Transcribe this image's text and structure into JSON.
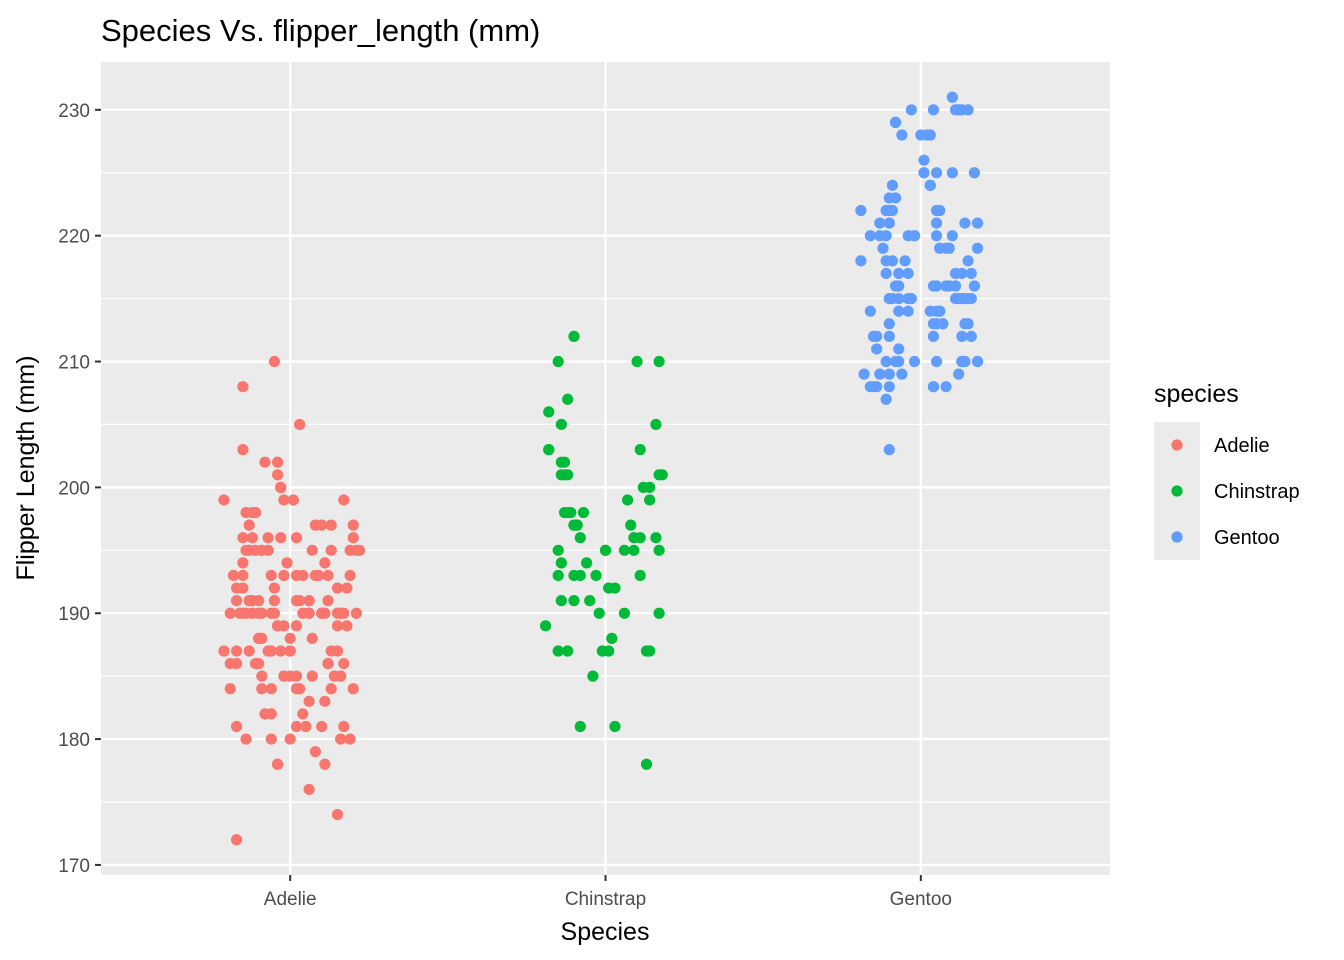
{
  "chart_data": {
    "type": "scatter",
    "title": "Species Vs. flipper_length (mm)",
    "xlabel": "Species",
    "ylabel": "Flipper Length (mm)",
    "categories": [
      "Adelie",
      "Chinstrap",
      "Gentoo"
    ],
    "ylim": [
      169.2,
      233.8
    ],
    "yticks": [
      170,
      180,
      190,
      200,
      210,
      220,
      230
    ],
    "ytick_labels": [
      "170",
      "180",
      "190",
      "200",
      "210",
      "220",
      "230"
    ],
    "grid": true,
    "legend": {
      "title": "species",
      "position": "right",
      "entries": [
        "Adelie",
        "Chinstrap",
        "Gentoo"
      ]
    },
    "colors": {
      "Adelie": "#F8766D",
      "Chinstrap": "#00BA38",
      "Gentoo": "#619CFF",
      "panel": "#EBEBEB",
      "grid": "#FFFFFF"
    },
    "series": [
      {
        "name": "Adelie",
        "values": [
          181,
          186,
          195,
          193,
          190,
          181,
          195,
          193,
          190,
          186,
          180,
          182,
          191,
          198,
          185,
          195,
          197,
          184,
          194,
          174,
          180,
          189,
          185,
          180,
          187,
          183,
          187,
          172,
          180,
          178,
          178,
          188,
          184,
          195,
          196,
          190,
          180,
          181,
          184,
          182,
          195,
          186,
          196,
          185,
          190,
          182,
          179,
          190,
          191,
          186,
          188,
          190,
          200,
          187,
          191,
          186,
          193,
          181,
          194,
          185,
          195,
          185,
          192,
          184,
          192,
          195,
          188,
          190,
          198,
          190,
          190,
          196,
          197,
          190,
          195,
          191,
          184,
          187,
          195,
          189,
          196,
          187,
          193,
          191,
          194,
          190,
          189,
          189,
          190,
          202,
          205,
          185,
          186,
          187,
          208,
          190,
          196,
          178,
          192,
          192,
          203,
          183,
          190,
          193,
          184,
          199,
          190,
          181,
          197,
          198,
          191,
          193,
          197,
          191,
          196,
          188,
          199,
          189,
          189,
          187,
          198,
          176,
          202,
          186,
          199,
          191,
          195,
          191,
          210,
          190,
          197,
          193,
          199,
          187,
          190,
          191,
          200,
          185,
          193,
          193,
          187,
          188,
          190,
          192,
          185,
          190,
          184,
          195,
          193,
          187,
          201
        ],
        "x_jitter": [
          -0.17,
          0.12,
          -0.09,
          -0.02,
          0.21,
          0.05,
          -0.14,
          0.19,
          -0.06,
          -0.17,
          0.16,
          -0.08,
          0.03,
          -0.11,
          0.14,
          0.22,
          0.08,
          -0.19,
          -0.15,
          0.15,
          0.19,
          -0.04,
          0.07,
          0.0,
          -0.21,
          0.11,
          -0.13,
          -0.17,
          -0.14,
          -0.04,
          0.11,
          -0.1,
          0.02,
          0.21,
          -0.03,
          0.06,
          -0.06,
          0.1,
          0.13,
          -0.06,
          -0.13,
          -0.19,
          -0.07,
          0.16,
          0.1,
          0.04,
          0.08,
          -0.05,
          -0.12,
          0.17,
          0.0,
          0.15,
          -0.03,
          -0.06,
          0.06,
          -0.11,
          -0.18,
          0.17,
          -0.01,
          -0.09,
          0.07,
          -0.02,
          -0.17,
          0.03,
          -0.05,
          0.13,
          -0.1,
          0.04,
          -0.11,
          -0.12,
          0.17,
          -0.15,
          0.13,
          0.16,
          -0.11,
          -0.17,
          -0.06,
          0.15,
          -0.07,
          -0.02,
          0.02,
          -0.17,
          0.12,
          -0.13,
          0.11,
          -0.16,
          0.02,
          0.15,
          0.11,
          -0.08,
          0.03,
          0.02,
          -0.1,
          -0.03,
          -0.15,
          -0.15,
          0.2,
          -0.04,
          -0.15,
          0.15,
          -0.15,
          0.06,
          0.1,
          0.09,
          -0.09,
          0.17,
          0.06,
          0.02,
          0.1,
          -0.12,
          -0.13,
          0.04,
          -0.13,
          0.12,
          -0.12,
          0.07,
          0.01,
          0.18,
          -0.04,
          0.0,
          -0.14,
          0.06,
          -0.04,
          0.12,
          -0.21,
          0.02,
          0.19,
          -0.05,
          -0.05,
          -0.19,
          0.2,
          -0.06,
          -0.02,
          -0.07,
          -0.14,
          -0.1,
          -0.03,
          0.16,
          0.02,
          -0.15,
          0.13,
          -0.09,
          -0.09,
          0.18,
          0.0,
          -0.1,
          0.2,
          -0.09,
          0.08,
          0.0,
          -0.04
        ]
      },
      {
        "name": "Chinstrap",
        "values": [
          192,
          196,
          193,
          188,
          197,
          198,
          178,
          197,
          195,
          198,
          193,
          194,
          185,
          201,
          190,
          201,
          197,
          181,
          190,
          195,
          181,
          191,
          187,
          193,
          195,
          197,
          200,
          200,
          191,
          205,
          187,
          201,
          187,
          203,
          195,
          199,
          195,
          210,
          192,
          205,
          210,
          187,
          196,
          196,
          196,
          201,
          190,
          212,
          187,
          198,
          199,
          201,
          193,
          203,
          187,
          197,
          191,
          203,
          202,
          194,
          206,
          189,
          195,
          207,
          202,
          193,
          210,
          198
        ],
        "x_jitter": [
          0.01,
          0.11,
          -0.08,
          0.02,
          0.08,
          -0.11,
          0.13,
          -0.09,
          0.17,
          -0.07,
          0.11,
          -0.14,
          -0.04,
          -0.13,
          0.17,
          0.18,
          -0.1,
          -0.08,
          -0.02,
          0.09,
          0.03,
          -0.1,
          -0.12,
          -0.03,
          0.0,
          -0.09,
          0.14,
          0.12,
          -0.14,
          0.16,
          -0.15,
          0.17,
          -0.01,
          -0.18,
          0.06,
          0.14,
          -0.15,
          -0.15,
          0.03,
          -0.14,
          0.1,
          0.13,
          0.16,
          0.09,
          -0.08,
          -0.12,
          0.06,
          -0.1,
          0.01,
          -0.13,
          0.07,
          -0.14,
          -0.1,
          0.11,
          0.14,
          -0.1,
          -0.05,
          -0.18,
          -0.14,
          -0.06,
          -0.18,
          -0.19,
          0.0,
          -0.12,
          -0.13,
          -0.15,
          0.17,
          -0.12
        ]
      },
      {
        "name": "Gentoo",
        "values": [
          211,
          230,
          210,
          218,
          215,
          210,
          211,
          219,
          209,
          215,
          214,
          216,
          214,
          216,
          214,
          213,
          210,
          217,
          210,
          221,
          209,
          222,
          218,
          215,
          213,
          215,
          215,
          215,
          216,
          215,
          210,
          220,
          222,
          209,
          207,
          230,
          220,
          220,
          213,
          219,
          208,
          208,
          208,
          225,
          210,
          216,
          222,
          217,
          210,
          225,
          213,
          215,
          210,
          220,
          210,
          225,
          217,
          220,
          208,
          220,
          208,
          224,
          208,
          221,
          214,
          231,
          219,
          230,
          214,
          229,
          220,
          223,
          216,
          221,
          221,
          217,
          216,
          230,
          209,
          220,
          215,
          223,
          212,
          221,
          212,
          224,
          212,
          228,
          218,
          218,
          212,
          230,
          218,
          228,
          212,
          224,
          214,
          226,
          216,
          222,
          203,
          225,
          219,
          228,
          215,
          228,
          216,
          215,
          210,
          219,
          208,
          209,
          216,
          229,
          213,
          230,
          217,
          230,
          217,
          222,
          214,
          215,
          222,
          212,
          213
        ],
        "x_jitter": [
          -0.07,
          0.11,
          0.18,
          -0.19,
          0.13,
          -0.08,
          -0.14,
          -0.12,
          -0.1,
          0.12,
          -0.04,
          0.05,
          0.03,
          0.09,
          0.06,
          -0.1,
          0.13,
          0.13,
          -0.11,
          0.18,
          -0.06,
          -0.11,
          0.15,
          -0.03,
          0.04,
          -0.1,
          0.16,
          0.15,
          0.11,
          -0.04,
          0.18,
          0.05,
          -0.19,
          -0.13,
          -0.11,
          0.13,
          -0.13,
          -0.02,
          0.07,
          0.06,
          -0.15,
          -0.16,
          0.04,
          0.17,
          0.05,
          0.11,
          0.05,
          0.16,
          0.14,
          0.05,
          0.14,
          -0.07,
          -0.02,
          0.1,
          -0.07,
          0.01,
          -0.04,
          -0.04,
          -0.14,
          -0.16,
          -0.1,
          0.03,
          0.04,
          -0.1,
          -0.07,
          0.1,
          0.08,
          -0.03,
          0.06,
          -0.08,
          -0.02,
          -0.1,
          0.08,
          0.14,
          -0.13,
          -0.07,
          0.17,
          0.12,
          -0.18,
          -0.11,
          0.14,
          -0.08,
          0.04,
          0.05,
          0.13,
          0.03,
          -0.15,
          0.02,
          -0.11,
          -0.05,
          -0.1,
          0.04,
          -0.09,
          0.0,
          0.16,
          -0.09,
          0.05,
          0.01,
          0.04,
          -0.1,
          -0.1,
          0.1,
          0.09,
          0.03,
          0.11,
          -0.06,
          -0.07,
          0.13,
          0.13,
          0.18,
          0.08,
          0.12,
          -0.08,
          -0.08,
          0.15,
          0.12,
          -0.11,
          0.15,
          0.11,
          -0.09,
          -0.16,
          -0.09,
          0.06,
          -0.14,
          0.05
        ]
      }
    ]
  }
}
